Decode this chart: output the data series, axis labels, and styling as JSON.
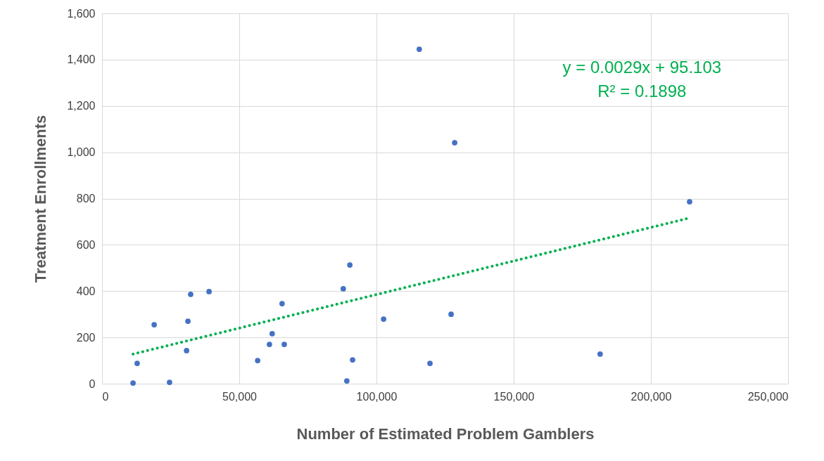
{
  "chart_data": {
    "type": "scatter",
    "xlabel": "Number of Estimated Problem Gamblers",
    "ylabel": "Treatment Enrollments",
    "x": [
      11300,
      12800,
      19000,
      24600,
      30800,
      31300,
      32300,
      39000,
      56700,
      61000,
      62000,
      65600,
      66400,
      87900,
      89200,
      90300,
      91300,
      102600,
      115600,
      119500,
      127200,
      128500,
      181500,
      214100
    ],
    "series": [
      {
        "color": "#4472c4",
        "marker": "circle",
        "values": [
          3,
          88,
          255,
          6,
          143,
          270,
          386,
          398,
          100,
          170,
          216,
          346,
          170,
          410,
          12,
          513,
          103,
          279,
          1445,
          88,
          300,
          1041,
          128,
          786
        ]
      },
      {
        "type": "line",
        "color": "#00b050",
        "line_style": "dotted",
        "x": [
          11300,
          214100
        ],
        "values": [
          128,
          716
        ]
      }
    ],
    "xlim": [
      0,
      250000
    ],
    "xticks": [
      0,
      {
        "value": 50000,
        "label": "50,000"
      },
      {
        "value": 100000,
        "label": "100,000"
      },
      {
        "value": 150000,
        "label": "150,000"
      },
      {
        "value": 200000,
        "label": "200,000"
      },
      {
        "value": 250000,
        "label": "250,000"
      }
    ],
    "ylim": [
      0,
      1600
    ],
    "yticks": [
      0,
      200,
      400,
      600,
      800,
      {
        "value": 1000,
        "label": "1,000"
      },
      {
        "value": 1200,
        "label": "1,200"
      },
      {
        "value": 1400,
        "label": "1,400"
      },
      {
        "value": 1600,
        "label": "1,600"
      }
    ],
    "grid": true,
    "annotations": [
      "y = 0.0029x + 95.103",
      "R² = 0.1898"
    ]
  }
}
